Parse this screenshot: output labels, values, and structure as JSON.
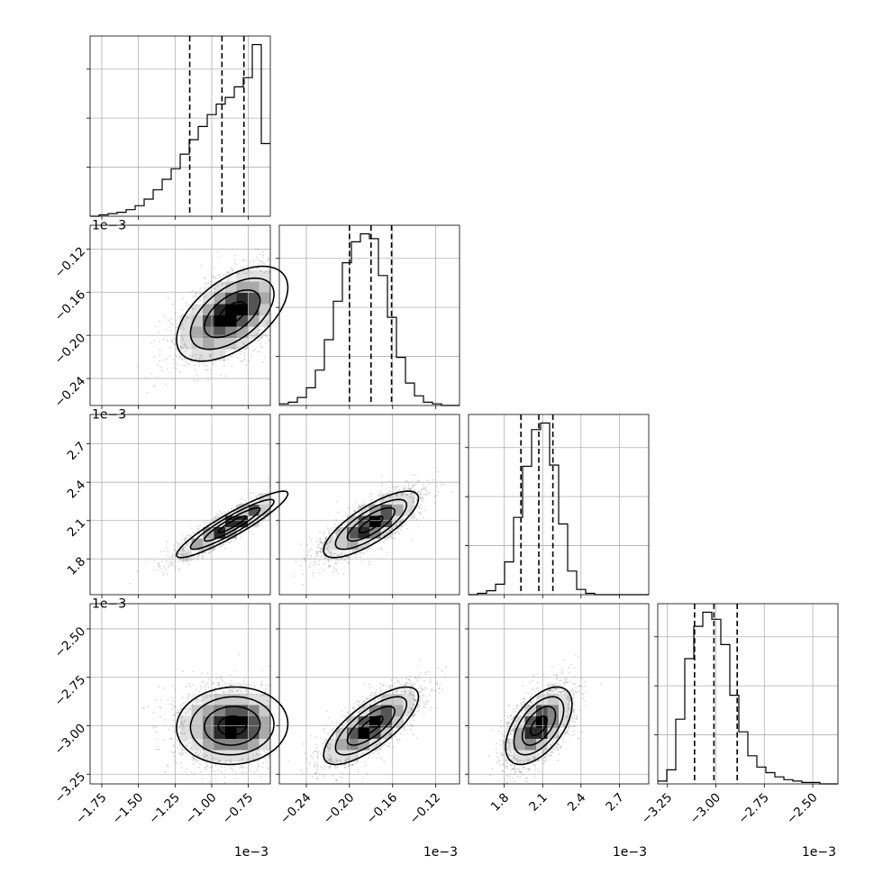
{
  "chart_data": {
    "type": "corner",
    "title": "",
    "parameters": [
      {
        "key": "p0",
        "range": [
          -1.83,
          -0.6
        ],
        "ticks": [
          -1.75,
          -1.5,
          -1.25,
          -1.0,
          -0.75
        ],
        "tick_labels": [
          "−1.75",
          "−1.50",
          "−1.25",
          "−1.00",
          "−0.75"
        ],
        "offset_label": "1e−3",
        "mean": -0.86,
        "sd": 0.19,
        "quantiles": [
          -1.15,
          -0.93,
          -0.78
        ]
      },
      {
        "key": "p1",
        "range": [
          -0.265,
          -0.098
        ],
        "ticks": [
          -0.24,
          -0.2,
          -0.16,
          -0.12
        ],
        "tick_labels": [
          "−0.24",
          "−0.20",
          "−0.16",
          "−0.12"
        ],
        "offset_label": "1e−3",
        "mean": -0.18,
        "sd": 0.022,
        "quantiles": [
          -0.2,
          -0.18,
          -0.161
        ]
      },
      {
        "key": "p2",
        "range": [
          1.52,
          2.93
        ],
        "ticks": [
          1.8,
          2.1,
          2.4,
          2.7
        ],
        "tick_labels": [
          "1.8",
          "2.1",
          "2.4",
          "2.7"
        ],
        "offset_label": "1e−3",
        "mean": 2.07,
        "sd": 0.13,
        "quantiles": [
          1.93,
          2.07,
          2.18
        ]
      },
      {
        "key": "p3",
        "range": [
          -3.3,
          -2.37
        ],
        "ticks": [
          -3.25,
          -3.0,
          -2.75,
          -2.5
        ],
        "tick_labels": [
          "−3.25",
          "−3.00",
          "−2.75",
          "−2.50"
        ],
        "offset_label": "1e−3",
        "mean": -3.0,
        "sd": 0.1,
        "quantiles": [
          -3.11,
          -3.01,
          -2.89
        ]
      }
    ],
    "histograms": {
      "bins": 20,
      "p0": [
        0,
        1,
        2,
        3,
        5,
        8,
        13,
        20,
        28,
        36,
        47,
        58,
        68,
        77,
        85,
        90,
        98,
        105,
        130,
        55
      ],
      "p1": [
        1,
        2,
        5,
        11,
        22,
        41,
        65,
        89,
        102,
        107,
        104,
        81,
        55,
        30,
        14,
        6,
        2,
        1,
        0,
        0
      ],
      "p2": [
        0,
        1,
        3,
        8,
        25,
        59,
        98,
        126,
        131,
        99,
        54,
        18,
        4,
        1,
        0,
        0,
        0,
        0,
        0,
        0
      ],
      "p3": [
        2,
        10,
        46,
        89,
        112,
        122,
        117,
        99,
        63,
        37,
        20,
        12,
        8,
        5,
        3,
        2,
        1,
        1,
        0,
        0
      ]
    },
    "correlations": {
      "p1_p0": 0.55,
      "p2_p0": 0.92,
      "p2_p1": 0.78,
      "p3_p0": 0.05,
      "p3_p1": 0.75,
      "p3_p2": 0.55
    },
    "contour_levels_sigma": [
      0.5,
      1.0,
      1.5,
      2.0
    ],
    "xlabel_offsets": [
      "1e−3",
      "1e−3",
      "1e−3",
      "1e−3"
    ],
    "ylabel_offsets": [
      "1e−3",
      "1e−3",
      "1e−3"
    ],
    "grid": true
  }
}
